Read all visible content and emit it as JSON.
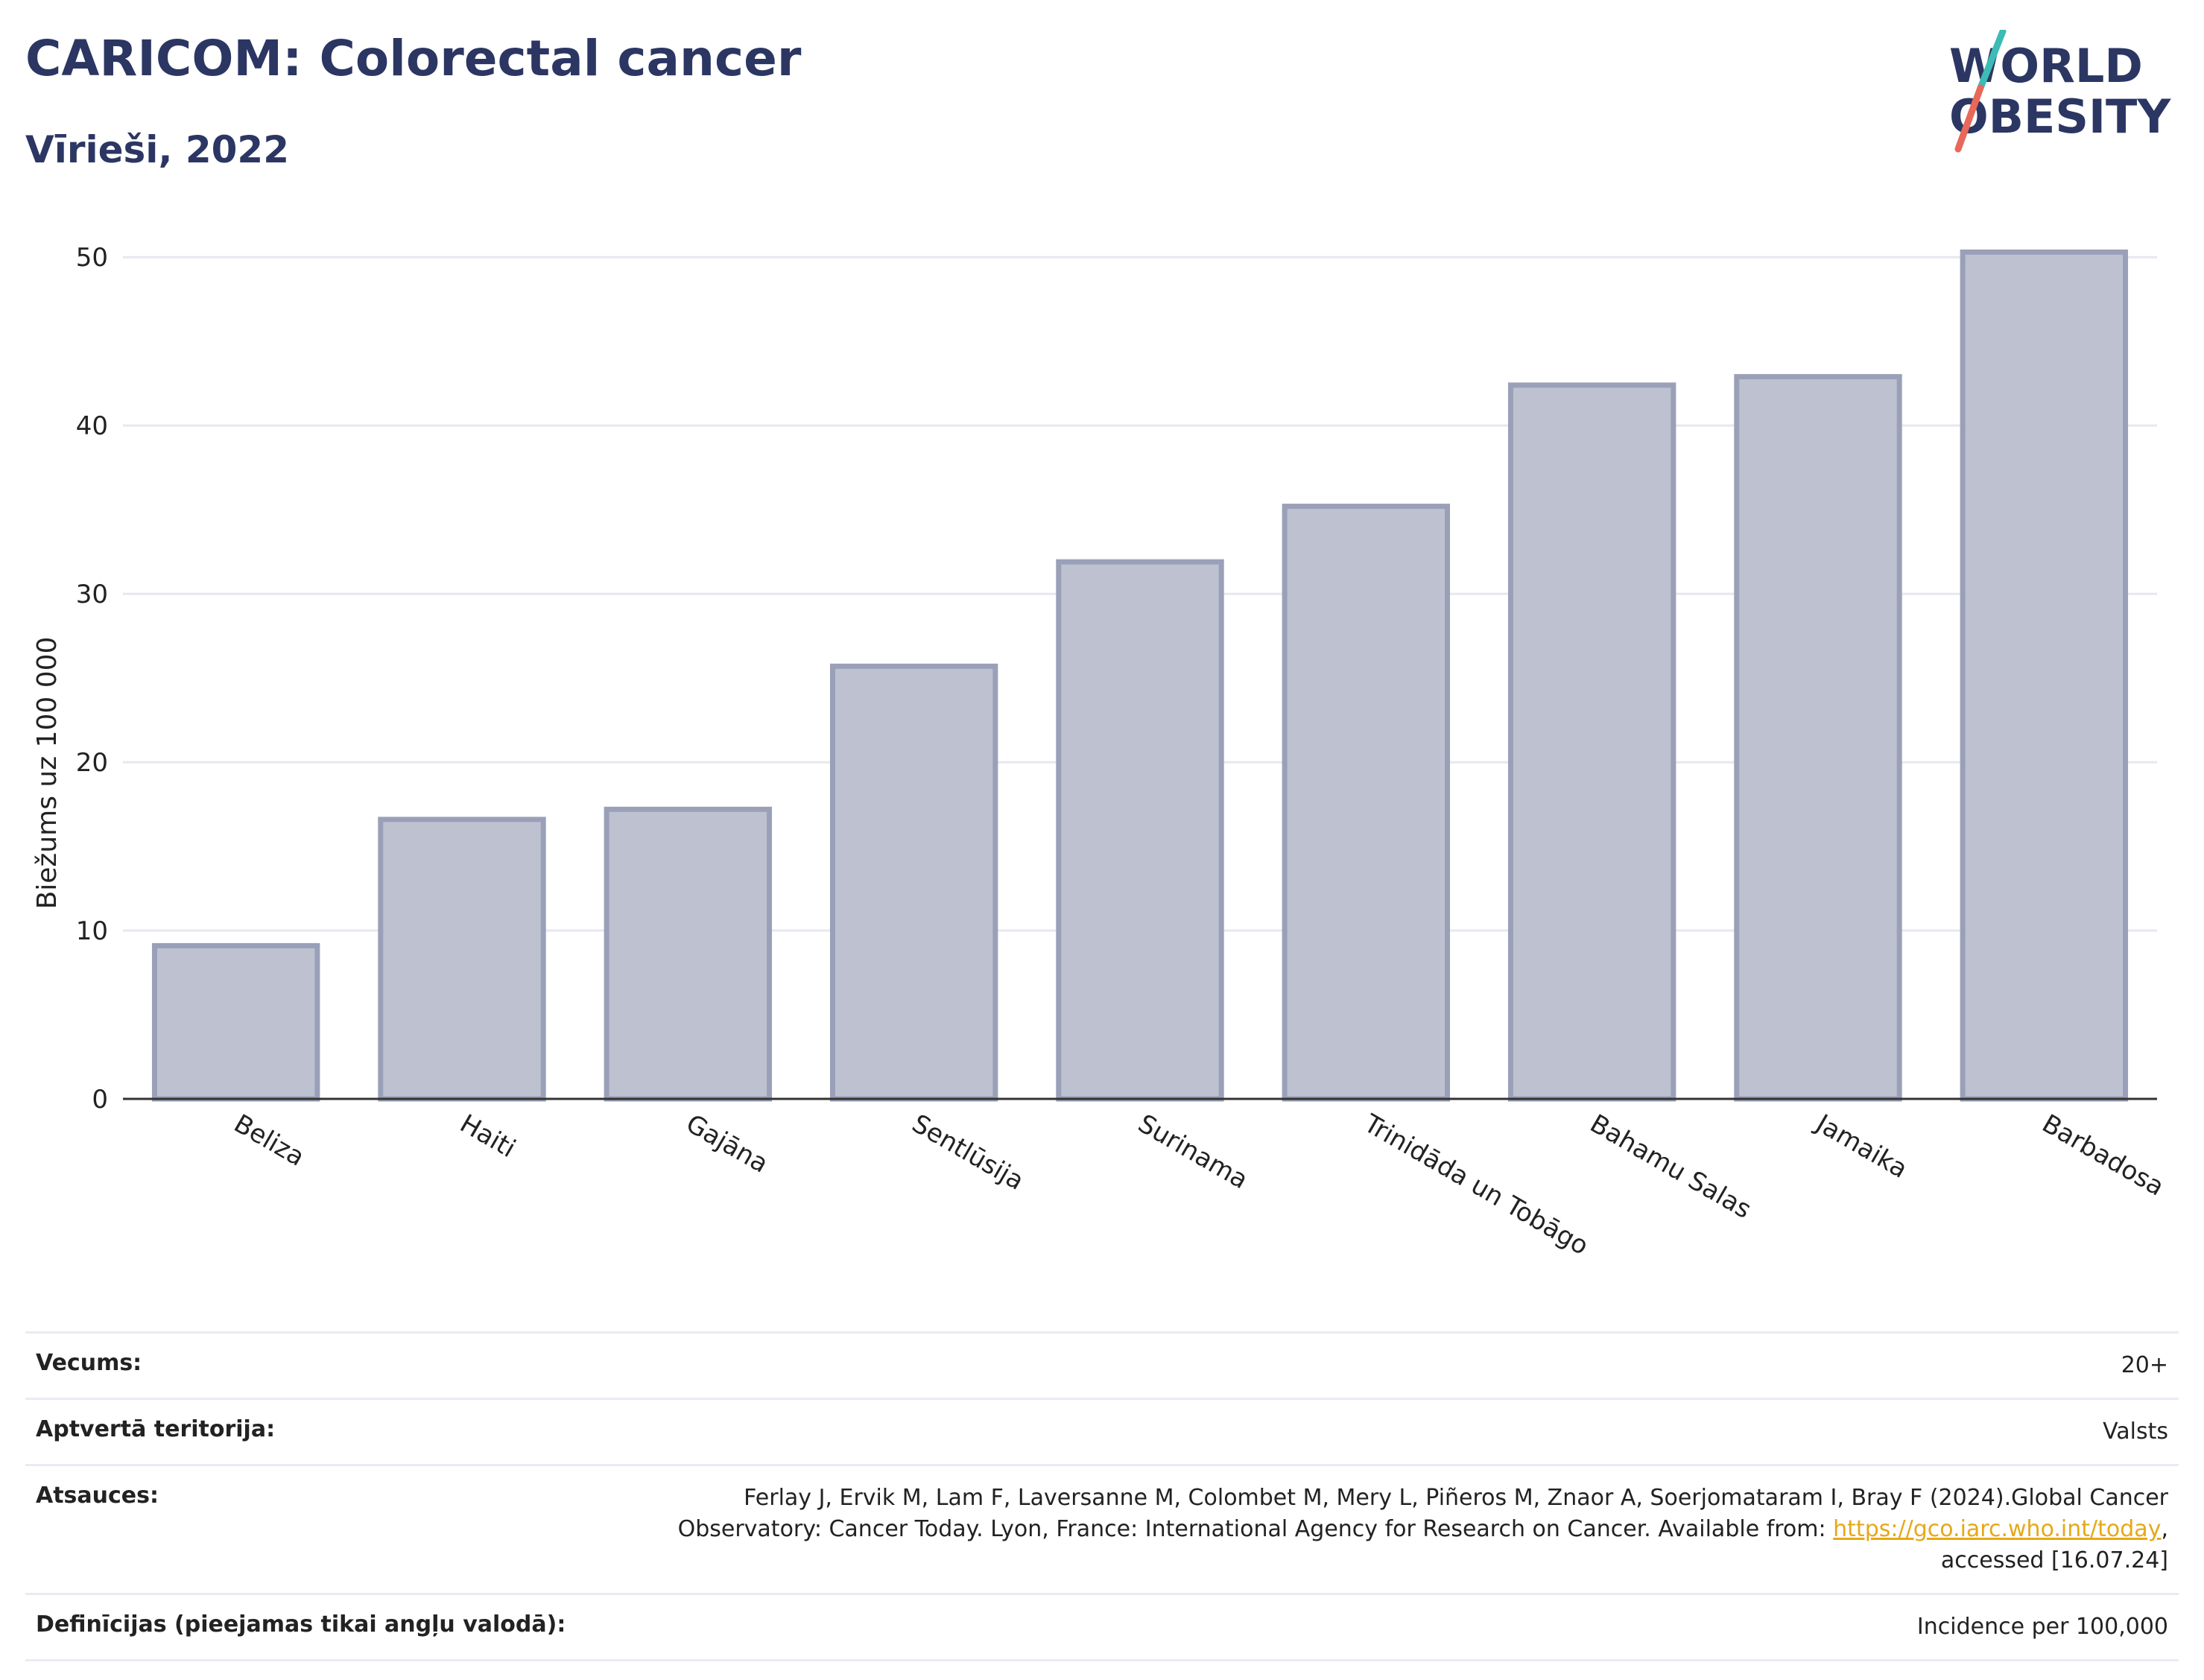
{
  "header": {
    "title": "CARICOM: Colorectal cancer",
    "subtitle": "Vīrieši, 2022",
    "logo_line1": "WORLD",
    "logo_line2": "OBESITY"
  },
  "chart_data": {
    "type": "bar",
    "categories": [
      "Beliza",
      "Haiti",
      "Gajāna",
      "Sentlūsija",
      "Surinama",
      "Trinidāda un Tobāgo",
      "Bahamu Salas",
      "Jamaika",
      "Barbadosa"
    ],
    "values": [
      9.1,
      16.6,
      17.2,
      25.7,
      31.9,
      35.2,
      42.4,
      42.9,
      50.3
    ],
    "ylabel": "Biežums uz 100 000",
    "ylim": [
      0,
      52
    ],
    "yticks": [
      0,
      10,
      20,
      30,
      40,
      50
    ],
    "grid": true,
    "bar_color": "#bec2d0",
    "bar_edge_color": "#9aa0b8"
  },
  "meta": {
    "rows": [
      {
        "key": "Vecums:",
        "value": "20+"
      },
      {
        "key": "Aptvertā teritorija:",
        "value": "Valsts"
      },
      {
        "key": "Definīcijas (pieejamas tikai angļu valodā):",
        "value": "Incidence per 100,000"
      }
    ],
    "source_key": "Atsauces:",
    "source_text_1": "Ferlay J, Ervik M, Lam F, Laversanne M, Colombet M, Mery L, Piñeros M, Znaor A, Soerjomataram I, Bray F (2024).Global Cancer Observatory: Cancer Today. Lyon, France: International Agency for Research on Cancer. Available from: ",
    "source_link": "https://gco.iarc.who.int/today",
    "source_text_2": ", accessed [16.07.24]"
  },
  "colors": {
    "title": "#2c3663",
    "logo_teal": "#3dbbb5",
    "logo_coral": "#e8685a"
  }
}
